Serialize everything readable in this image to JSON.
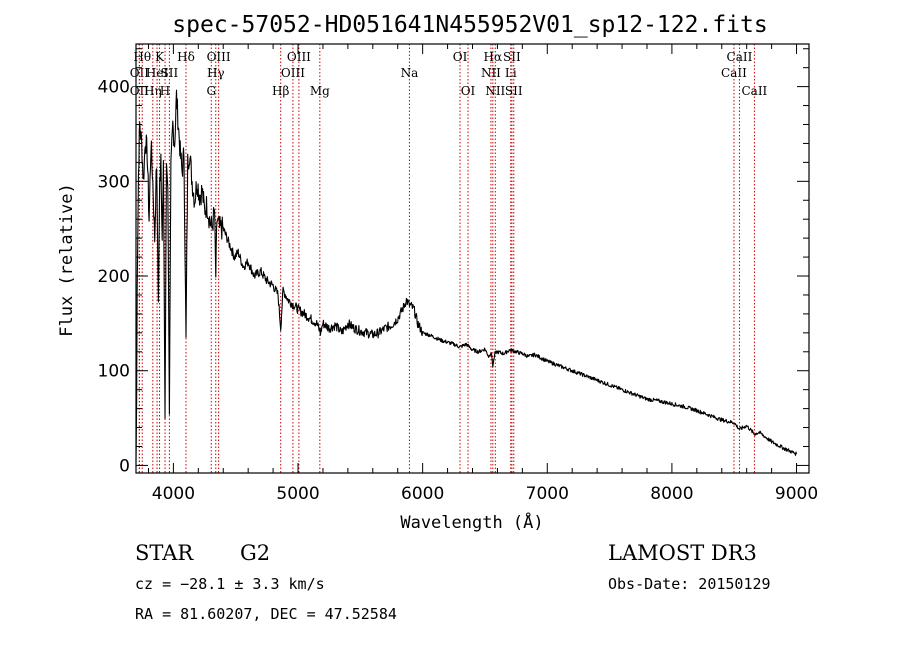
{
  "chart_data": {
    "type": "line",
    "title": "spec-57052-HD051641N455952V01_sp12-122.fits",
    "xlabel": "Wavelength (Å)",
    "ylabel": "Flux (relative)",
    "xlim": [
      3700,
      9100
    ],
    "ylim": [
      -8,
      445
    ],
    "xticks": [
      4000,
      5000,
      6000,
      7000,
      8000,
      9000
    ],
    "yticks": [
      0,
      100,
      200,
      300,
      400
    ],
    "series": [
      {
        "name": "spectrum",
        "color": "#000000",
        "x": [
          3700,
          3705,
          3710,
          3720,
          3730,
          3745,
          3760,
          3775,
          3790,
          3805,
          3820,
          3835,
          3850,
          3865,
          3880,
          3890,
          3900,
          3910,
          3920,
          3933,
          3945,
          3955,
          3968,
          3980,
          3995,
          4010,
          4025,
          4040,
          4055,
          4070,
          4085,
          4101,
          4115,
          4130,
          4150,
          4170,
          4190,
          4210,
          4230,
          4250,
          4270,
          4290,
          4310,
          4330,
          4340,
          4350,
          4370,
          4400,
          4430,
          4460,
          4490,
          4520,
          4560,
          4600,
          4650,
          4700,
          4750,
          4800,
          4840,
          4861,
          4880,
          4920,
          4960,
          5000,
          5050,
          5100,
          5150,
          5180,
          5200,
          5250,
          5300,
          5350,
          5400,
          5450,
          5500,
          5550,
          5600,
          5650,
          5700,
          5750,
          5800,
          5850,
          5870,
          5890,
          5910,
          5930,
          5960,
          6000,
          6050,
          6100,
          6150,
          6200,
          6250,
          6300,
          6350,
          6400,
          6450,
          6500,
          6530,
          6550,
          6563,
          6580,
          6600,
          6650,
          6700,
          6750,
          6800,
          6850,
          6900,
          7000,
          7100,
          7200,
          7300,
          7400,
          7500,
          7600,
          7700,
          7800,
          7900,
          8000,
          8100,
          8200,
          8300,
          8400,
          8500,
          8542,
          8600,
          8662,
          8700,
          8800,
          8900,
          9000
        ],
        "y": [
          5,
          60,
          200,
          310,
          360,
          340,
          300,
          345,
          330,
          260,
          340,
          300,
          240,
          320,
          170,
          300,
          330,
          240,
          310,
          50,
          320,
          300,
          60,
          310,
          360,
          340,
          390,
          360,
          330,
          310,
          330,
          130,
          320,
          330,
          300,
          280,
          300,
          285,
          290,
          270,
          275,
          260,
          250,
          270,
          200,
          260,
          250,
          250,
          240,
          230,
          220,
          225,
          210,
          215,
          200,
          205,
          195,
          190,
          180,
          145,
          185,
          175,
          170,
          165,
          160,
          155,
          150,
          140,
          150,
          145,
          148,
          140,
          150,
          145,
          142,
          140,
          138,
          140,
          145,
          148,
          155,
          168,
          175,
          170,
          168,
          165,
          150,
          140,
          138,
          135,
          132,
          130,
          128,
          125,
          128,
          122,
          120,
          123,
          115,
          120,
          105,
          118,
          120,
          118,
          122,
          120,
          118,
          115,
          117,
          110,
          105,
          100,
          95,
          90,
          85,
          80,
          75,
          70,
          68,
          65,
          62,
          58,
          53,
          48,
          45,
          38,
          42,
          33,
          35,
          25,
          18,
          12
        ]
      }
    ],
    "spectral_lines": [
      {
        "wavelength": 3727,
        "label": "OII",
        "row": 3
      },
      {
        "wavelength": 3727,
        "label": "OII",
        "row": 2
      },
      {
        "wavelength": 3750,
        "label": "Hθ",
        "row": 1
      },
      {
        "wavelength": 3835,
        "label": "Hη",
        "row": 3
      },
      {
        "wavelength": 3869,
        "label": "HeI",
        "row": 2
      },
      {
        "wavelength": 3889,
        "label": "K",
        "row": 1
      },
      {
        "wavelength": 3933,
        "label": "H",
        "row": 3
      },
      {
        "wavelength": 3968,
        "label": "SII",
        "row": 2
      },
      {
        "wavelength": 4101,
        "label": "Hδ",
        "row": 1
      },
      {
        "wavelength": 4304,
        "label": "G",
        "row": 3
      },
      {
        "wavelength": 4340,
        "label": "Hγ",
        "row": 2
      },
      {
        "wavelength": 4363,
        "label": "OIII",
        "row": 1
      },
      {
        "wavelength": 4861,
        "label": "Hβ",
        "row": 3
      },
      {
        "wavelength": 4959,
        "label": "OIII",
        "row": 2
      },
      {
        "wavelength": 5007,
        "label": "OIII",
        "row": 1
      },
      {
        "wavelength": 5175,
        "label": "Mg",
        "row": 3
      },
      {
        "wavelength": 5894,
        "label": "Na",
        "row": 2
      },
      {
        "wavelength": 6300,
        "label": "OI",
        "row": 1
      },
      {
        "wavelength": 6364,
        "label": "OI",
        "row": 3
      },
      {
        "wavelength": 6548,
        "label": "NII",
        "row": 2
      },
      {
        "wavelength": 6563,
        "label": "Hα",
        "row": 1
      },
      {
        "wavelength": 6583,
        "label": "NII",
        "row": 3
      },
      {
        "wavelength": 6707,
        "label": "Li",
        "row": 2
      },
      {
        "wavelength": 6716,
        "label": "SII",
        "row": 1
      },
      {
        "wavelength": 6731,
        "label": "SII",
        "row": 3
      },
      {
        "wavelength": 8498,
        "label": "CaII",
        "row": 2
      },
      {
        "wavelength": 8542,
        "label": "CaII",
        "row": 1
      },
      {
        "wavelength": 8662,
        "label": "CaII",
        "row": 3
      }
    ]
  },
  "info": {
    "class_label": "STAR",
    "subclass": "G2",
    "cz": "cz = −28.1 ± 3.3 km/s",
    "radec": "RA =  81.60207, DEC =  47.52584",
    "survey": "LAMOST DR3",
    "obs_date": "Obs-Date: 20150129"
  },
  "colors": {
    "line_marker": "#cc0000",
    "spectrum": "#000000",
    "axes": "#000000"
  }
}
